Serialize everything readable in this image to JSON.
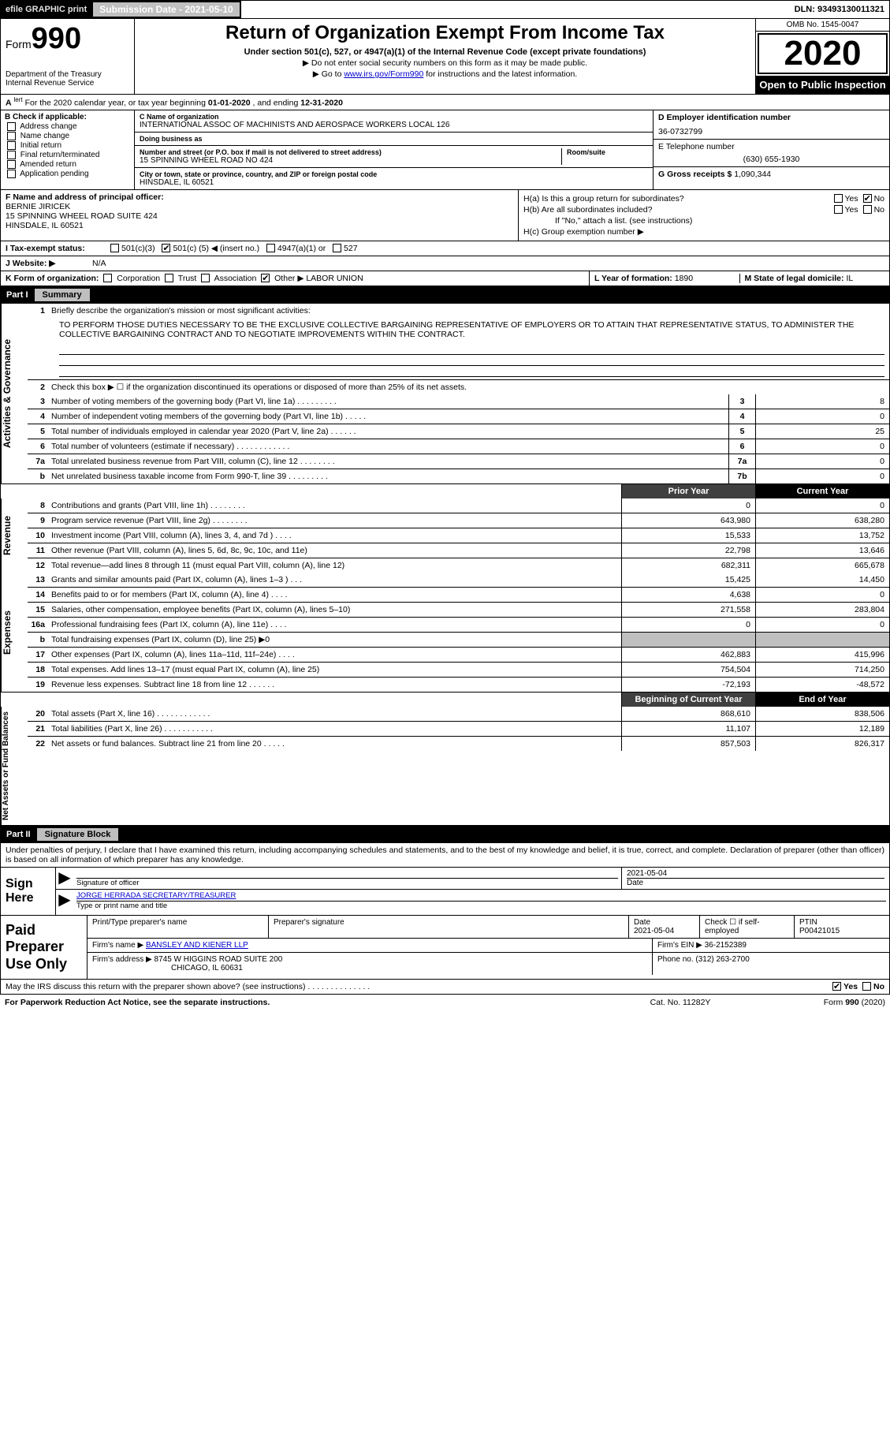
{
  "topbar": {
    "efile": "efile GRAPHIC print",
    "submission_label": "Submission Date - ",
    "submission_date": "2021-05-10",
    "dln_label": "DLN: ",
    "dln": "93493130011321"
  },
  "header": {
    "form_prefix": "Form",
    "form_number": "990",
    "title": "Return of Organization Exempt From Income Tax",
    "subtitle": "Under section 501(c), 527, or 4947(a)(1) of the Internal Revenue Code (except private foundations)",
    "note1": "▶ Do not enter social security numbers on this form as it may be made public.",
    "note2_pre": "▶ Go to ",
    "note2_link": "www.irs.gov/Form990",
    "note2_post": " for instructions and the latest information.",
    "dept": "Department of the Treasury\nInternal Revenue Service",
    "omb": "OMB No. 1545-0047",
    "year": "2020",
    "open": "Open to Public Inspection"
  },
  "period": {
    "prefix": "A",
    "text": "For the 2020 calendar year, or tax year beginning ",
    "begin": "01-01-2020",
    "mid": " , and ending ",
    "end": "12-31-2020"
  },
  "blockB": {
    "label": "B Check if applicable:",
    "opts": [
      "Address change",
      "Name change",
      "Initial return",
      "Final return/terminated",
      "Amended return",
      "Application pending"
    ]
  },
  "blockC": {
    "name_label": "C Name of organization",
    "name": "INTERNATIONAL ASSOC OF MACHINISTS AND AEROSPACE WORKERS LOCAL 126",
    "dba_label": "Doing business as",
    "dba": "",
    "street_label": "Number and street (or P.O. box if mail is not delivered to street address)",
    "room_label": "Room/suite",
    "street": "15 SPINNING WHEEL ROAD NO 424",
    "city_label": "City or town, state or province, country, and ZIP or foreign postal code",
    "city": "HINSDALE, IL  60521"
  },
  "blockD": {
    "label": "D Employer identification number",
    "value": "36-0732799"
  },
  "blockE": {
    "label": "E Telephone number",
    "value": "(630) 655-1930"
  },
  "blockG": {
    "label": "G Gross receipts $ ",
    "value": "1,090,344"
  },
  "blockF": {
    "label": "F Name and address of principal officer:",
    "name": "BERNIE JIRICEK",
    "addr1": "15 SPINNING WHEEL ROAD SUITE 424",
    "addr2": "HINSDALE, IL  60521"
  },
  "blockH": {
    "a": "H(a)  Is this a group return for subordinates?",
    "b": "H(b)  Are all subordinates included?",
    "b_note": "If \"No,\" attach a list. (see instructions)",
    "c": "H(c)  Group exemption number ▶",
    "yes": "Yes",
    "no": "No"
  },
  "taxExempt": {
    "label": "I  Tax-exempt status:",
    "c3": "501(c)(3)",
    "c_pre": "501(c) ( ",
    "c_num": "5",
    "c_post": " ) ◀ (insert no.)",
    "a1": "4947(a)(1) or",
    "527": "527"
  },
  "website": {
    "label": "J  Website: ▶",
    "value": "N/A"
  },
  "lineK": {
    "label": "K Form of organization:",
    "corp": "Corporation",
    "trust": "Trust",
    "assoc": "Association",
    "other": "Other ▶",
    "other_val": "LABOR UNION"
  },
  "lineL": {
    "label": "L Year of formation: ",
    "value": "1890"
  },
  "lineM": {
    "label": "M State of legal domicile: ",
    "value": "IL"
  },
  "part1": {
    "hdr": "Part I",
    "title": "Summary",
    "side_ag": "Activities & Governance",
    "side_rev": "Revenue",
    "side_exp": "Expenses",
    "side_na": "Net Assets or Fund Balances",
    "l1_label": "Briefly describe the organization's mission or most significant activities:",
    "l1_text": "TO PERFORM THOSE DUTIES NECESSARY TO BE THE EXCLUSIVE COLLECTIVE BARGAINING REPRESENTATIVE OF EMPLOYERS OR TO ATTAIN THAT REPRESENTATIVE STATUS, TO ADMINISTER THE COLLECTIVE BARGAINING CONTRACT AND TO NEGOTIATE IMPROVEMENTS WITHIN THE CONTRACT.",
    "l2": "Check this box ▶ ☐  if the organization discontinued its operations or disposed of more than 25% of its net assets.",
    "rows_ag": [
      {
        "n": "3",
        "t": "Number of voting members of the governing body (Part VI, line 1a)  .    .    .    .    .    .    .    .    .",
        "b": "3",
        "v": "8"
      },
      {
        "n": "4",
        "t": "Number of independent voting members of the governing body (Part VI, line 1b)  .    .    .    .    .",
        "b": "4",
        "v": "0"
      },
      {
        "n": "5",
        "t": "Total number of individuals employed in calendar year 2020 (Part V, line 2a)  .    .    .    .    .    .",
        "b": "5",
        "v": "25"
      },
      {
        "n": "6",
        "t": "Total number of volunteers (estimate if necessary)  .    .    .    .    .    .    .    .    .    .    .    .",
        "b": "6",
        "v": "0"
      },
      {
        "n": "7a",
        "t": "Total unrelated business revenue from Part VIII, column (C), line 12   .    .    .    .    .    .    .    .",
        "b": "7a",
        "v": "0"
      },
      {
        "n": " b",
        "t": "Net unrelated business taxable income from Form 990-T, line 39   .    .    .    .    .    .    .    .    .",
        "b": "7b",
        "v": "0"
      }
    ],
    "col_prior": "Prior Year",
    "col_current": "Current Year",
    "rows_rev": [
      {
        "n": "8",
        "t": "Contributions and grants (Part VIII, line 1h)  .    .    .    .    .    .    .    .",
        "p": "0",
        "c": "0"
      },
      {
        "n": "9",
        "t": "Program service revenue (Part VIII, line 2g)  .    .    .    .    .    .    .    .",
        "p": "643,980",
        "c": "638,280"
      },
      {
        "n": "10",
        "t": "Investment income (Part VIII, column (A), lines 3, 4, and 7d )  .    .    .    .",
        "p": "15,533",
        "c": "13,752"
      },
      {
        "n": "11",
        "t": "Other revenue (Part VIII, column (A), lines 5, 6d, 8c, 9c, 10c, and 11e)",
        "p": "22,798",
        "c": "13,646"
      },
      {
        "n": "12",
        "t": "Total revenue—add lines 8 through 11 (must equal Part VIII, column (A), line 12)",
        "p": "682,311",
        "c": "665,678"
      }
    ],
    "rows_exp": [
      {
        "n": "13",
        "t": "Grants and similar amounts paid (Part IX, column (A), lines 1–3 )  .    .    .",
        "p": "15,425",
        "c": "14,450"
      },
      {
        "n": "14",
        "t": "Benefits paid to or for members (Part IX, column (A), line 4)  .    .    .    .",
        "p": "4,638",
        "c": "0"
      },
      {
        "n": "15",
        "t": "Salaries, other compensation, employee benefits (Part IX, column (A), lines 5–10)",
        "p": "271,558",
        "c": "283,804"
      },
      {
        "n": "16a",
        "t": "Professional fundraising fees (Part IX, column (A), line 11e)  .    .    .    .",
        "p": "0",
        "c": "0"
      },
      {
        "n": " b",
        "t": "Total fundraising expenses (Part IX, column (D), line 25) ▶0",
        "p": "",
        "c": "",
        "grey": true
      },
      {
        "n": "17",
        "t": "Other expenses (Part IX, column (A), lines 11a–11d, 11f–24e)  .    .    .    .",
        "p": "462,883",
        "c": "415,996"
      },
      {
        "n": "18",
        "t": "Total expenses. Add lines 13–17 (must equal Part IX, column (A), line 25)",
        "p": "754,504",
        "c": "714,250"
      },
      {
        "n": "19",
        "t": "Revenue less expenses. Subtract line 18 from line 12  .    .    .    .    .    .",
        "p": "-72,193",
        "c": "-48,572"
      }
    ],
    "col_boy": "Beginning of Current Year",
    "col_eoy": "End of Year",
    "rows_na": [
      {
        "n": "20",
        "t": "Total assets (Part X, line 16)  .    .    .    .    .    .    .    .    .    .    .    .",
        "p": "868,610",
        "c": "838,506"
      },
      {
        "n": "21",
        "t": "Total liabilities (Part X, line 26)  .    .    .    .    .    .    .    .    .    .    .",
        "p": "11,107",
        "c": "12,189"
      },
      {
        "n": "22",
        "t": "Net assets or fund balances. Subtract line 21 from line 20  .    .    .    .    .",
        "p": "857,503",
        "c": "826,317"
      }
    ]
  },
  "part2": {
    "hdr": "Part II",
    "title": "Signature Block",
    "perjury": "Under penalties of perjury, I declare that I have examined this return, including accompanying schedules and statements, and to the best of my knowledge and belief, it is true, correct, and complete. Declaration of preparer (other than officer) is based on all information of which preparer has any knowledge.",
    "sign_here": "Sign Here",
    "sig_officer": "Signature of officer",
    "sig_date": "2021-05-04",
    "date_label": "Date",
    "officer_name": "JORGE HERRADA  SECRETARY/TREASURER",
    "type_label": "Type or print name and title",
    "paid_prep": "Paid Preparer Use Only",
    "prep_name_label": "Print/Type preparer's name",
    "prep_sig_label": "Preparer's signature",
    "prep_date_label": "Date",
    "prep_date": "2021-05-04",
    "check_label": "Check ☐ if self-employed",
    "ptin_label": "PTIN",
    "ptin": "P00421015",
    "firm_name_label": "Firm's name   ▶",
    "firm_name": "BANSLEY AND KIENER LLP",
    "firm_ein_label": "Firm's EIN ▶",
    "firm_ein": "36-2152389",
    "firm_addr_label": "Firm's address ▶",
    "firm_addr1": "8745 W HIGGINS ROAD SUITE 200",
    "firm_addr2": "CHICAGO, IL  60631",
    "phone_label": "Phone no. ",
    "phone": "(312) 263-2700",
    "discuss": "May the IRS discuss this return with the preparer shown above? (see instructions)    .    .    .    .    .    .    .    .    .    .    .    .    .    .",
    "yes": "Yes",
    "no": "No"
  },
  "footer": {
    "pra": "For Paperwork Reduction Act Notice, see the separate instructions.",
    "cat": "Cat. No. 11282Y",
    "form": "Form 990 (2020)"
  },
  "colors": {
    "black": "#000000",
    "grey_btn": "#c0c0c0",
    "grey_cell": "#bfbfbf",
    "link": "#0000cc"
  }
}
